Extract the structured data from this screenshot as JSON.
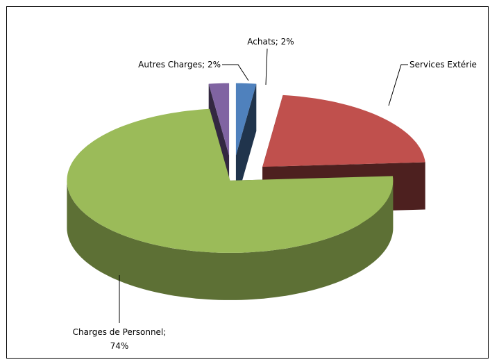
{
  "chart_data": {
    "type": "pie3d",
    "values": [
      2,
      22,
      74,
      2
    ],
    "value_labels": [
      "Achats; 2%",
      "Services Extérie",
      "Charges de Personnel;\n74%",
      "Autres Charges; 2%"
    ],
    "colors": [
      "#4f81bd",
      "#c0504d",
      "#9bbb59",
      "#8064a2"
    ],
    "start_angle": 0,
    "direction": "clockwise"
  }
}
